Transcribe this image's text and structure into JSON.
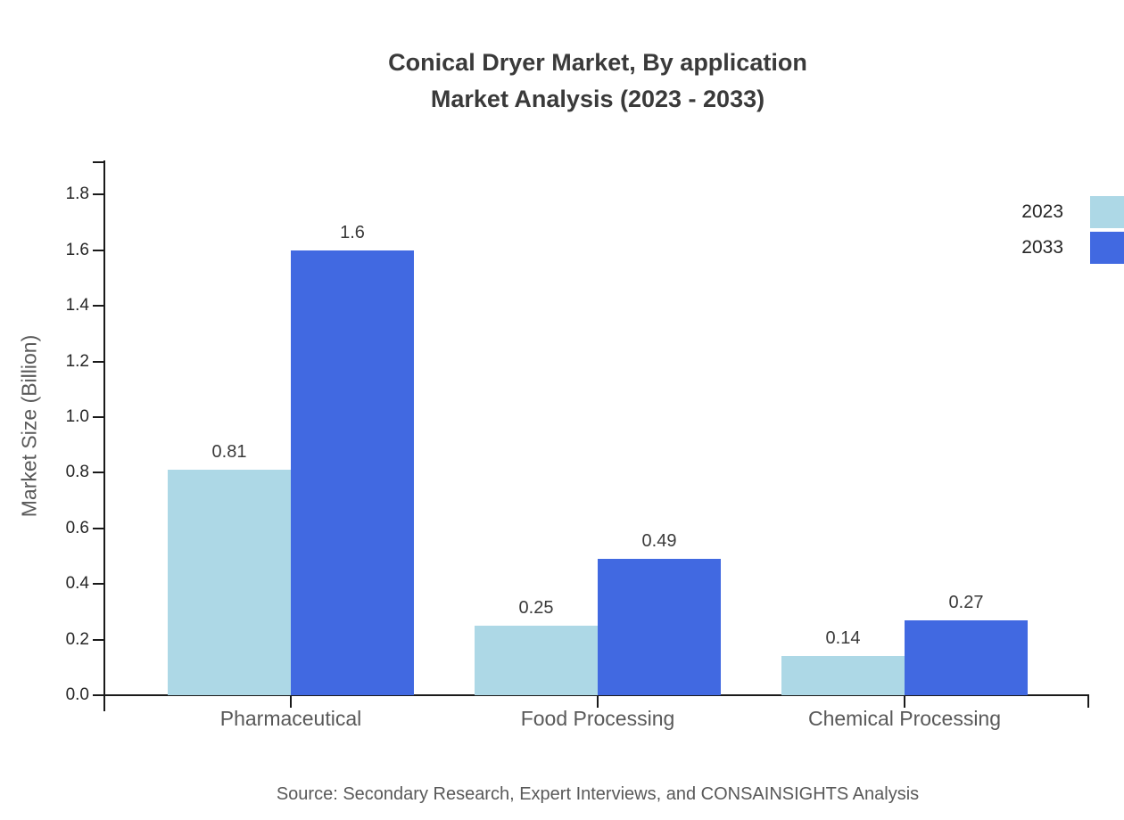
{
  "title": {
    "line1": "Conical Dryer Market, By application",
    "line2": "Market Analysis (2023 - 2033)"
  },
  "legend": [
    {
      "label": "2023",
      "color": "#add8e6"
    },
    {
      "label": "2033",
      "color": "#4169e1"
    }
  ],
  "axes": {
    "y_label": "Market Size (Billion)"
  },
  "source": "Source: Secondary Research, Expert Interviews, and CONSAINSIGHTS Analysis",
  "colors": {
    "series_2023": "#add8e6",
    "series_2033": "#4169e1",
    "axis": "#1a1a1a",
    "title_text": "#3a3a3a",
    "muted_text": "#595959"
  },
  "chart_data": {
    "type": "bar",
    "title": "Conical Dryer Market, By application Market Analysis (2023 - 2033)",
    "categories": [
      "Pharmaceutical",
      "Food Processing",
      "Chemical Processing"
    ],
    "series": [
      {
        "name": "2023",
        "color": "#add8e6",
        "values": [
          0.81,
          0.25,
          0.14
        ],
        "labels": [
          "0.81",
          "0.25",
          "0.14"
        ]
      },
      {
        "name": "2033",
        "color": "#4169e1",
        "values": [
          1.6,
          0.49,
          0.27
        ],
        "labels": [
          "1.6",
          "0.49",
          "0.27"
        ]
      }
    ],
    "xlabel": "",
    "ylabel": "Market Size (Billion)",
    "ylim": [
      0,
      1.9
    ],
    "ytick_step": 0.2,
    "ytick_labels": [
      "0.0",
      "0.2",
      "0.4",
      "0.6",
      "0.8",
      "1.0",
      "1.2",
      "1.4",
      "1.6",
      "1.8"
    ],
    "grid": false,
    "legend_position": "upper right",
    "value_labels_shown": true
  }
}
